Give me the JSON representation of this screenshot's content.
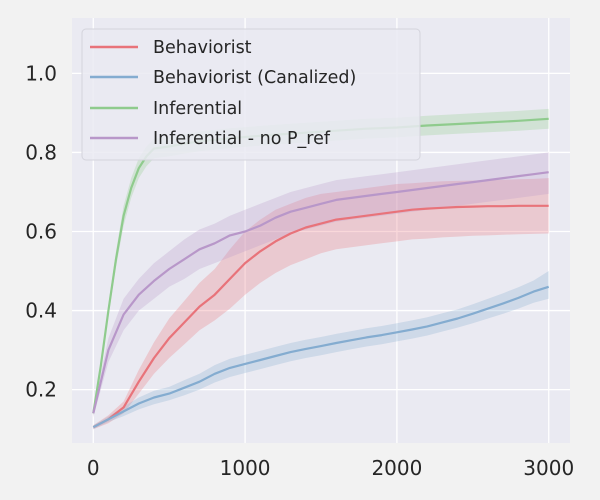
{
  "chart_data": {
    "type": "line",
    "title": "",
    "xlabel": "",
    "ylabel": "",
    "xlim": [
      -140,
      3140
    ],
    "ylim": [
      0.065,
      1.14
    ],
    "xticks": [
      0,
      1000,
      2000,
      3000
    ],
    "xtick_labels": [
      "0",
      "1000",
      "2000",
      "3000"
    ],
    "yticks": [
      0.2,
      0.4,
      0.6,
      0.8,
      1.0
    ],
    "ytick_labels": [
      "0.2",
      "0.4",
      "0.6",
      "0.8",
      "1.0"
    ],
    "grid": true,
    "legend_position": "top-left",
    "series": [
      {
        "name": "Behaviorist",
        "color": "#e8737a",
        "x": [
          0,
          100,
          200,
          300,
          400,
          500,
          600,
          700,
          800,
          900,
          1000,
          1100,
          1200,
          1300,
          1400,
          1500,
          1600,
          1700,
          1800,
          1900,
          2000,
          2100,
          2200,
          2300,
          2400,
          2500,
          2600,
          2700,
          2800,
          2900,
          3000
        ],
        "y": [
          0.105,
          0.125,
          0.155,
          0.22,
          0.28,
          0.33,
          0.37,
          0.41,
          0.44,
          0.48,
          0.52,
          0.55,
          0.575,
          0.595,
          0.61,
          0.62,
          0.63,
          0.635,
          0.64,
          0.645,
          0.65,
          0.655,
          0.658,
          0.66,
          0.662,
          0.663,
          0.664,
          0.664,
          0.665,
          0.665,
          0.665
        ],
        "lower": [
          0.1,
          0.115,
          0.14,
          0.19,
          0.24,
          0.28,
          0.315,
          0.35,
          0.375,
          0.405,
          0.44,
          0.47,
          0.495,
          0.515,
          0.53,
          0.545,
          0.555,
          0.56,
          0.565,
          0.57,
          0.575,
          0.58,
          0.582,
          0.585,
          0.587,
          0.589,
          0.59,
          0.592,
          0.593,
          0.594,
          0.595
        ],
        "upper": [
          0.11,
          0.135,
          0.17,
          0.25,
          0.32,
          0.38,
          0.425,
          0.47,
          0.505,
          0.555,
          0.6,
          0.63,
          0.655,
          0.67,
          0.685,
          0.695,
          0.7,
          0.705,
          0.71,
          0.715,
          0.72,
          0.722,
          0.725,
          0.727,
          0.728,
          0.729,
          0.73,
          0.731,
          0.732,
          0.733,
          0.735
        ]
      },
      {
        "name": "Behaviorist (Canalized)",
        "color": "#84acd0",
        "x": [
          0,
          100,
          200,
          300,
          400,
          500,
          600,
          700,
          800,
          900,
          1000,
          1100,
          1200,
          1300,
          1400,
          1500,
          1600,
          1700,
          1800,
          1900,
          2000,
          2100,
          2200,
          2300,
          2400,
          2500,
          2600,
          2700,
          2800,
          2900,
          3000
        ],
        "y": [
          0.105,
          0.125,
          0.145,
          0.165,
          0.18,
          0.19,
          0.205,
          0.22,
          0.24,
          0.255,
          0.265,
          0.275,
          0.285,
          0.295,
          0.303,
          0.31,
          0.318,
          0.325,
          0.332,
          0.338,
          0.345,
          0.352,
          0.36,
          0.37,
          0.38,
          0.392,
          0.405,
          0.418,
          0.432,
          0.448,
          0.46
        ],
        "lower": [
          0.1,
          0.118,
          0.133,
          0.15,
          0.163,
          0.173,
          0.186,
          0.2,
          0.218,
          0.232,
          0.242,
          0.252,
          0.262,
          0.272,
          0.28,
          0.287,
          0.295,
          0.302,
          0.309,
          0.315,
          0.322,
          0.329,
          0.337,
          0.347,
          0.357,
          0.368,
          0.38,
          0.392,
          0.405,
          0.42,
          0.43
        ],
        "upper": [
          0.11,
          0.132,
          0.157,
          0.18,
          0.197,
          0.207,
          0.224,
          0.24,
          0.262,
          0.278,
          0.288,
          0.298,
          0.308,
          0.318,
          0.326,
          0.333,
          0.341,
          0.348,
          0.355,
          0.361,
          0.368,
          0.375,
          0.383,
          0.393,
          0.403,
          0.416,
          0.43,
          0.444,
          0.459,
          0.476,
          0.5
        ]
      },
      {
        "name": "Inferential",
        "color": "#8fcb8d",
        "x": [
          0,
          50,
          100,
          150,
          200,
          250,
          300,
          350,
          400,
          500,
          600,
          700,
          800,
          900,
          1000,
          1200,
          1400,
          1600,
          1800,
          2000,
          2200,
          2400,
          2600,
          2800,
          3000
        ],
        "y": [
          0.14,
          0.26,
          0.4,
          0.53,
          0.64,
          0.71,
          0.76,
          0.79,
          0.81,
          0.815,
          0.822,
          0.828,
          0.832,
          0.836,
          0.839,
          0.845,
          0.85,
          0.855,
          0.86,
          0.863,
          0.868,
          0.872,
          0.876,
          0.88,
          0.885
        ],
        "lower": [
          0.135,
          0.25,
          0.385,
          0.51,
          0.615,
          0.685,
          0.735,
          0.765,
          0.785,
          0.79,
          0.797,
          0.803,
          0.807,
          0.811,
          0.814,
          0.82,
          0.825,
          0.83,
          0.835,
          0.838,
          0.843,
          0.847,
          0.851,
          0.855,
          0.86
        ],
        "upper": [
          0.145,
          0.27,
          0.415,
          0.55,
          0.665,
          0.735,
          0.785,
          0.815,
          0.835,
          0.84,
          0.847,
          0.853,
          0.857,
          0.861,
          0.864,
          0.87,
          0.875,
          0.88,
          0.885,
          0.888,
          0.893,
          0.897,
          0.901,
          0.905,
          0.91
        ]
      },
      {
        "name": "Inferential - no P_ref",
        "color": "#b897c9",
        "x": [
          0,
          100,
          200,
          300,
          400,
          500,
          600,
          700,
          800,
          900,
          1000,
          1100,
          1200,
          1300,
          1400,
          1500,
          1600,
          1700,
          1800,
          1900,
          2000,
          2100,
          2200,
          2300,
          2400,
          2500,
          2600,
          2700,
          2800,
          2900,
          3000
        ],
        "y": [
          0.14,
          0.3,
          0.39,
          0.44,
          0.475,
          0.505,
          0.53,
          0.555,
          0.57,
          0.59,
          0.6,
          0.615,
          0.635,
          0.65,
          0.66,
          0.67,
          0.68,
          0.685,
          0.69,
          0.695,
          0.7,
          0.705,
          0.71,
          0.715,
          0.72,
          0.725,
          0.73,
          0.735,
          0.74,
          0.745,
          0.75
        ],
        "lower": [
          0.13,
          0.27,
          0.35,
          0.4,
          0.43,
          0.46,
          0.48,
          0.505,
          0.52,
          0.535,
          0.55,
          0.565,
          0.58,
          0.595,
          0.605,
          0.615,
          0.625,
          0.63,
          0.635,
          0.64,
          0.645,
          0.65,
          0.655,
          0.66,
          0.665,
          0.67,
          0.675,
          0.68,
          0.685,
          0.69,
          0.695
        ],
        "upper": [
          0.15,
          0.33,
          0.43,
          0.48,
          0.52,
          0.55,
          0.58,
          0.605,
          0.62,
          0.64,
          0.655,
          0.67,
          0.685,
          0.7,
          0.71,
          0.72,
          0.73,
          0.735,
          0.74,
          0.745,
          0.75,
          0.755,
          0.76,
          0.765,
          0.77,
          0.775,
          0.78,
          0.785,
          0.79,
          0.795,
          0.8
        ]
      }
    ]
  }
}
